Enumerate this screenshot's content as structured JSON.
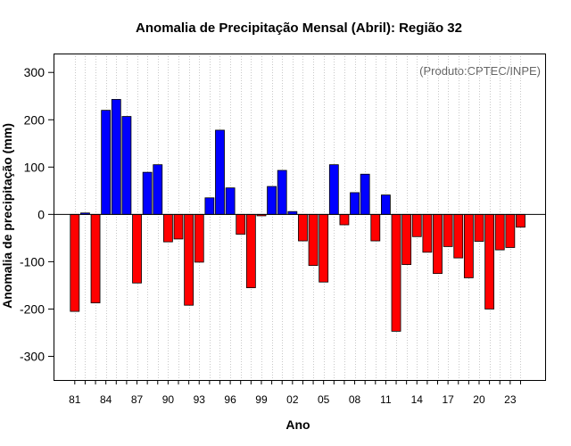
{
  "chart_data": {
    "type": "bar",
    "title": "Anomalia de Precipitação Mensal (Abril): Região 32",
    "xlabel": "Ano",
    "ylabel": "Anomalia de precipitação (mm)",
    "credit": "(Produto:CPTEC/INPE)",
    "ylim": [
      -350,
      340
    ],
    "yticks": [
      -300,
      -200,
      -100,
      0,
      100,
      200,
      300
    ],
    "xtick_labels": [
      "81",
      "84",
      "87",
      "90",
      "93",
      "96",
      "99",
      "02",
      "05",
      "08",
      "11",
      "14",
      "17",
      "20",
      "23"
    ],
    "categories": [
      "1981",
      "1982",
      "1983",
      "1984",
      "1985",
      "1986",
      "1987",
      "1988",
      "1989",
      "1990",
      "1991",
      "1992",
      "1993",
      "1994",
      "1995",
      "1996",
      "1997",
      "1998",
      "1999",
      "2000",
      "2001",
      "2002",
      "2003",
      "2004",
      "2005",
      "2006",
      "2007",
      "2008",
      "2009",
      "2010",
      "2011",
      "2012",
      "2013",
      "2014",
      "2015",
      "2016",
      "2017",
      "2018",
      "2019",
      "2020",
      "2021",
      "2022",
      "2023",
      "2024"
    ],
    "values": [
      -205,
      3,
      -187,
      220,
      243,
      207,
      -145,
      89,
      105,
      -58,
      -52,
      -192,
      -101,
      35,
      178,
      56,
      -42,
      -155,
      -3,
      59,
      93,
      6,
      -56,
      -108,
      -143,
      105,
      -22,
      46,
      85,
      -56,
      41,
      -247,
      -106,
      -47,
      -80,
      -125,
      -68,
      -92,
      -134,
      -57,
      -200,
      -75,
      -70,
      -27
    ],
    "positive_color": "#0000ff",
    "negative_color": "#ff0000",
    "grid": true
  }
}
